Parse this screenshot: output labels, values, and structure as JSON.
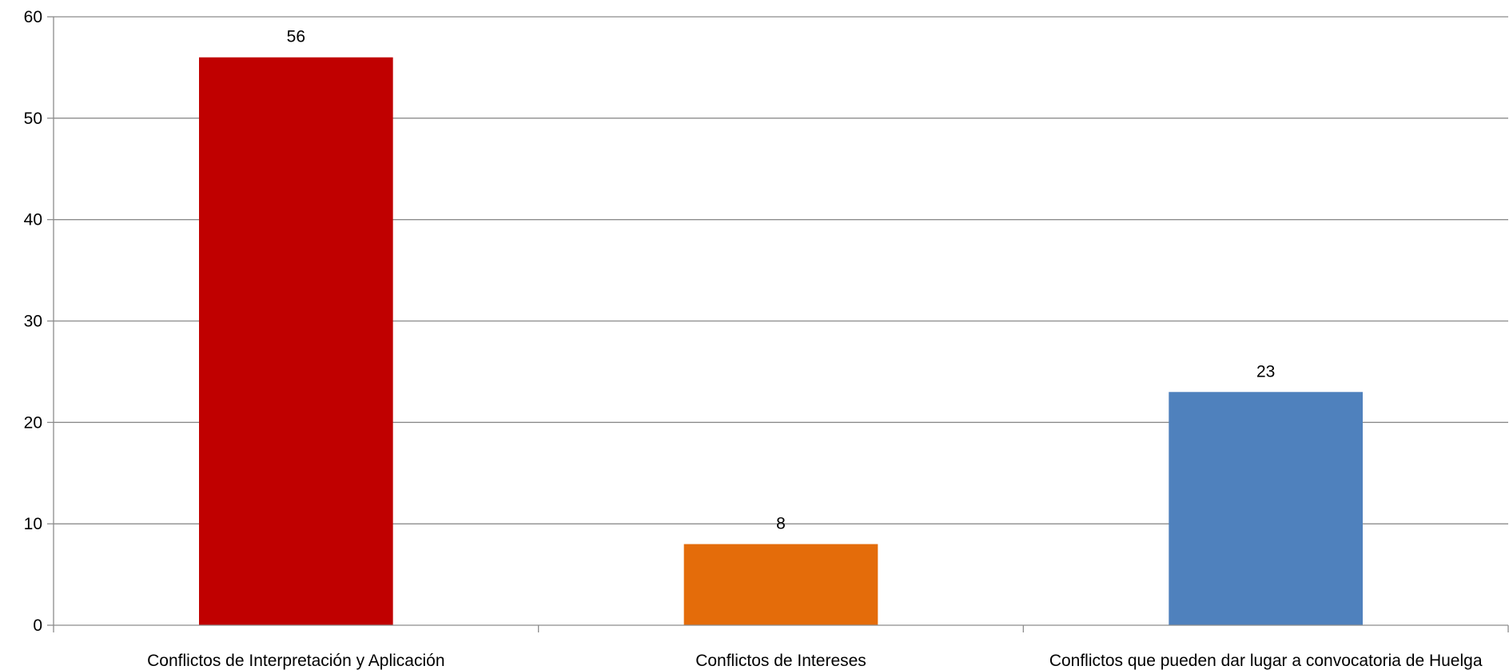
{
  "chart_data": {
    "type": "bar",
    "title": "",
    "xlabel": "",
    "ylabel": "",
    "categories": [
      "Conflictos de Interpretación y Aplicación",
      "Conflictos de Intereses",
      "Conflictos que pueden dar lugar a convocatoria de Huelga"
    ],
    "values": [
      56,
      8,
      23
    ],
    "colors": [
      "#C00000",
      "#E46C0A",
      "#4F81BD"
    ],
    "ylim": [
      0,
      60
    ],
    "yticks": [
      0,
      10,
      20,
      30,
      40,
      50,
      60
    ],
    "grid": true,
    "legend": "none",
    "data_labels": true
  }
}
